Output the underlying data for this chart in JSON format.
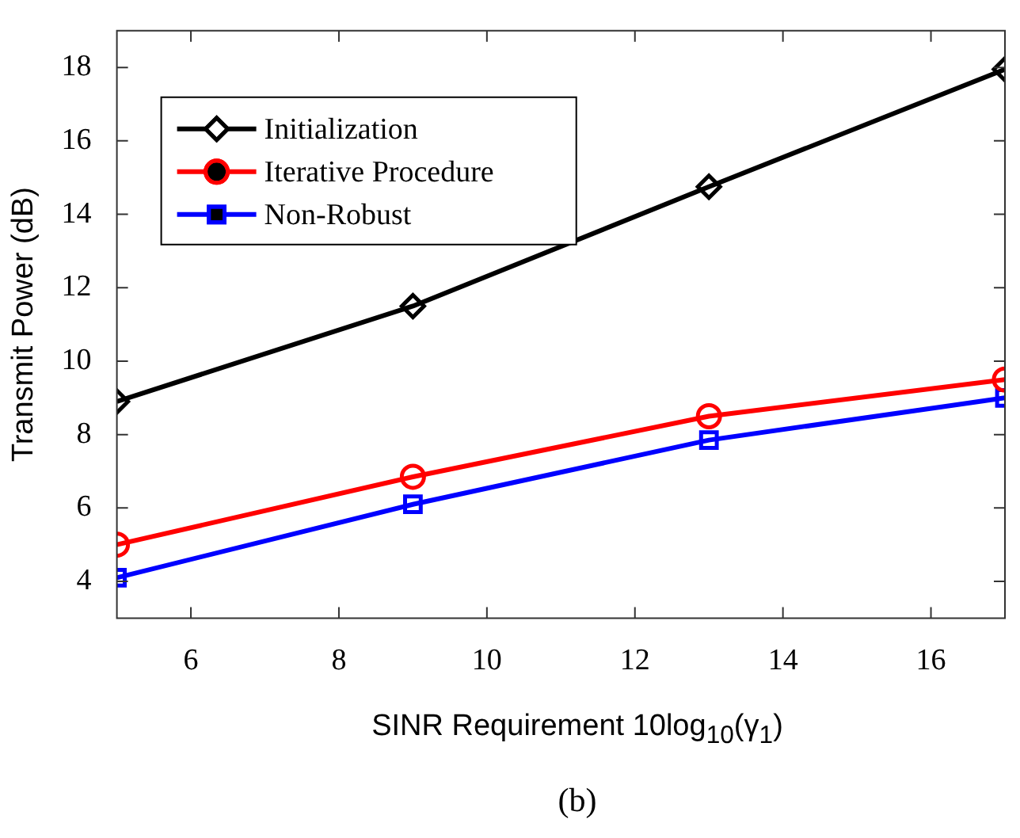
{
  "chart_data": {
    "type": "line",
    "xlabel": "SINR Requirement 10log$_{10}$(γ$_{1}$)",
    "ylabel": "Transmit Power (dB)",
    "annotations": [
      "(b)"
    ],
    "x": [
      5,
      9,
      13,
      17
    ],
    "xlim": [
      5,
      17
    ],
    "xticks": [
      6,
      8,
      10,
      12,
      14,
      16
    ],
    "ylim": [
      3,
      19
    ],
    "yticks": [
      4,
      6,
      8,
      10,
      12,
      14,
      16,
      18
    ],
    "grid": false,
    "legend": "top left",
    "line_style": "solid",
    "series": [
      {
        "name": "Initialization",
        "color": "#000000",
        "marker": "diamond",
        "values": [
          8.9,
          11.5,
          14.75,
          17.95
        ]
      },
      {
        "name": "Iterative Procedure",
        "color": "#ff0000",
        "marker": "circle",
        "values": [
          5.0,
          6.85,
          8.5,
          9.5
        ]
      },
      {
        "name": "Non-Robust",
        "color": "#0000ff",
        "marker": "square",
        "values": [
          4.1,
          6.1,
          7.85,
          9.0
        ]
      }
    ]
  }
}
